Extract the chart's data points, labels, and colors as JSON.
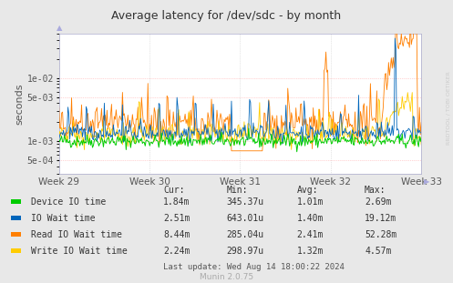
{
  "title": "Average latency for /dev/sdc - by month",
  "ylabel": "seconds",
  "xlabel_ticks": [
    "Week 29",
    "Week 30",
    "Week 31",
    "Week 32",
    "Week 33"
  ],
  "ylim": [
    0.0003,
    0.05
  ],
  "background_color": "#e8e8e8",
  "plot_bg_color": "#ffffff",
  "grid_color": "#cccccc",
  "watermark": "RRDTOOL / TOBI OETIKER",
  "munin_label": "Munin 2.0.75",
  "legend": [
    {
      "label": "Device IO time",
      "color": "#00cc00"
    },
    {
      "label": "IO Wait time",
      "color": "#0066bb"
    },
    {
      "label": "Read IO Wait time",
      "color": "#ff7f00"
    },
    {
      "label": "Write IO Wait time",
      "color": "#ffcc00"
    }
  ],
  "stats": {
    "headers": [
      "Cur:",
      "Min:",
      "Avg:",
      "Max:"
    ],
    "rows": [
      [
        "Device IO time",
        "1.84m",
        "345.37u",
        "1.01m",
        "2.69m"
      ],
      [
        "IO Wait time",
        "2.51m",
        "643.01u",
        "1.40m",
        "19.12m"
      ],
      [
        "Read IO Wait time",
        "8.44m",
        "285.04u",
        "2.41m",
        "52.28m"
      ],
      [
        "Write IO Wait time",
        "2.24m",
        "298.97u",
        "1.32m",
        "4.57m"
      ]
    ],
    "last_update": "Last update: Wed Aug 14 18:00:22 2024"
  },
  "n_points": 400,
  "yticks": [
    0.0005,
    0.001,
    0.005,
    0.01
  ],
  "ytick_labels": [
    "5e-04",
    "1e-03",
    "5e-03",
    "1e-02"
  ]
}
